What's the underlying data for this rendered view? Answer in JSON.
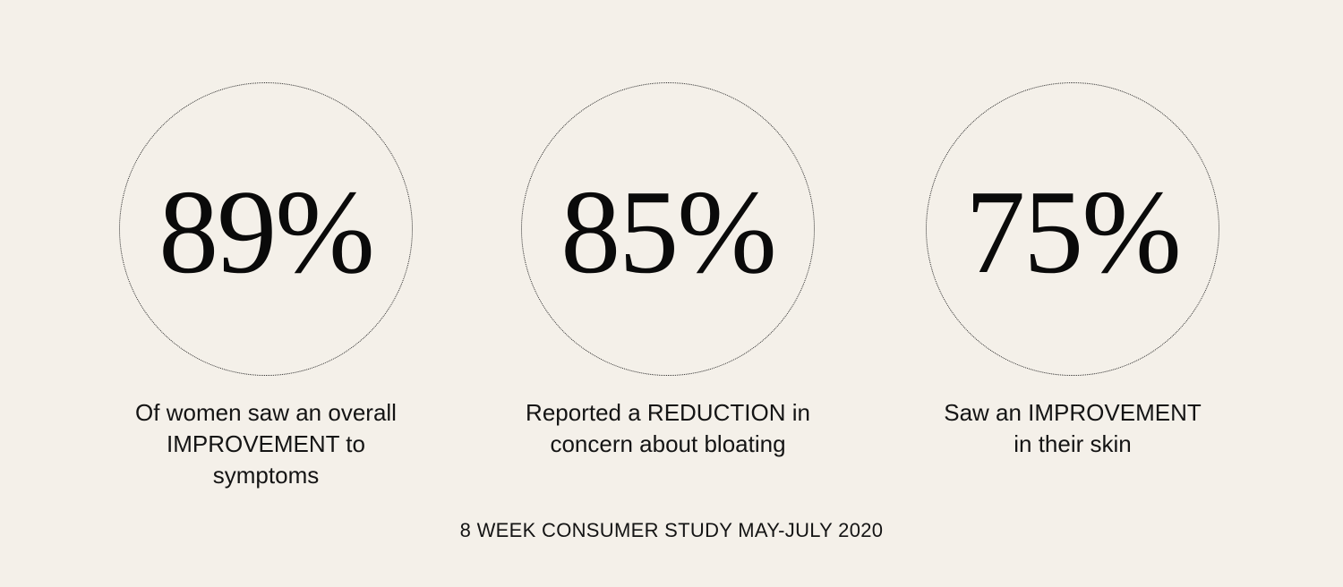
{
  "stats": [
    {
      "value": "89%",
      "caption_lines": [
        "Of women saw an overall",
        "IMPROVEMENT to",
        "symptoms"
      ]
    },
    {
      "value": "85%",
      "caption_lines": [
        "Reported a REDUCTION in",
        "concern about bloating"
      ]
    },
    {
      "value": "75%",
      "caption_lines": [
        "Saw an IMPROVEMENT",
        "in their skin"
      ]
    }
  ],
  "footnote": "8 WEEK CONSUMER STUDY MAY-JULY 2020",
  "colors": {
    "background": "#f4f0e9",
    "text": "#111111",
    "circle_border": "#2a2a2a"
  }
}
